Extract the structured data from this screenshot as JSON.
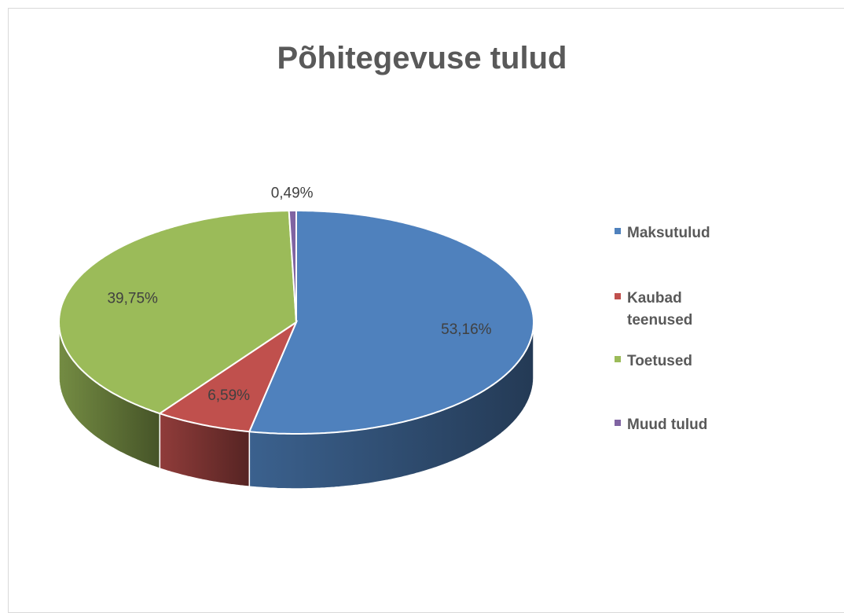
{
  "chart_data": {
    "type": "pie",
    "title": "Põhitegevuse tulud",
    "categories": [
      "Maksutulud",
      "Kaubad teenused",
      "Toetused",
      "Muud tulud"
    ],
    "values": [
      53.16,
      6.59,
      39.75,
      0.49
    ],
    "value_labels": [
      "53,16%",
      "6,59%",
      "39,75%",
      "0,49%"
    ],
    "colors": [
      "#4f81bd",
      "#c0504d",
      "#9bbb59",
      "#8064a2"
    ],
    "legend": "right",
    "style": "3d"
  }
}
